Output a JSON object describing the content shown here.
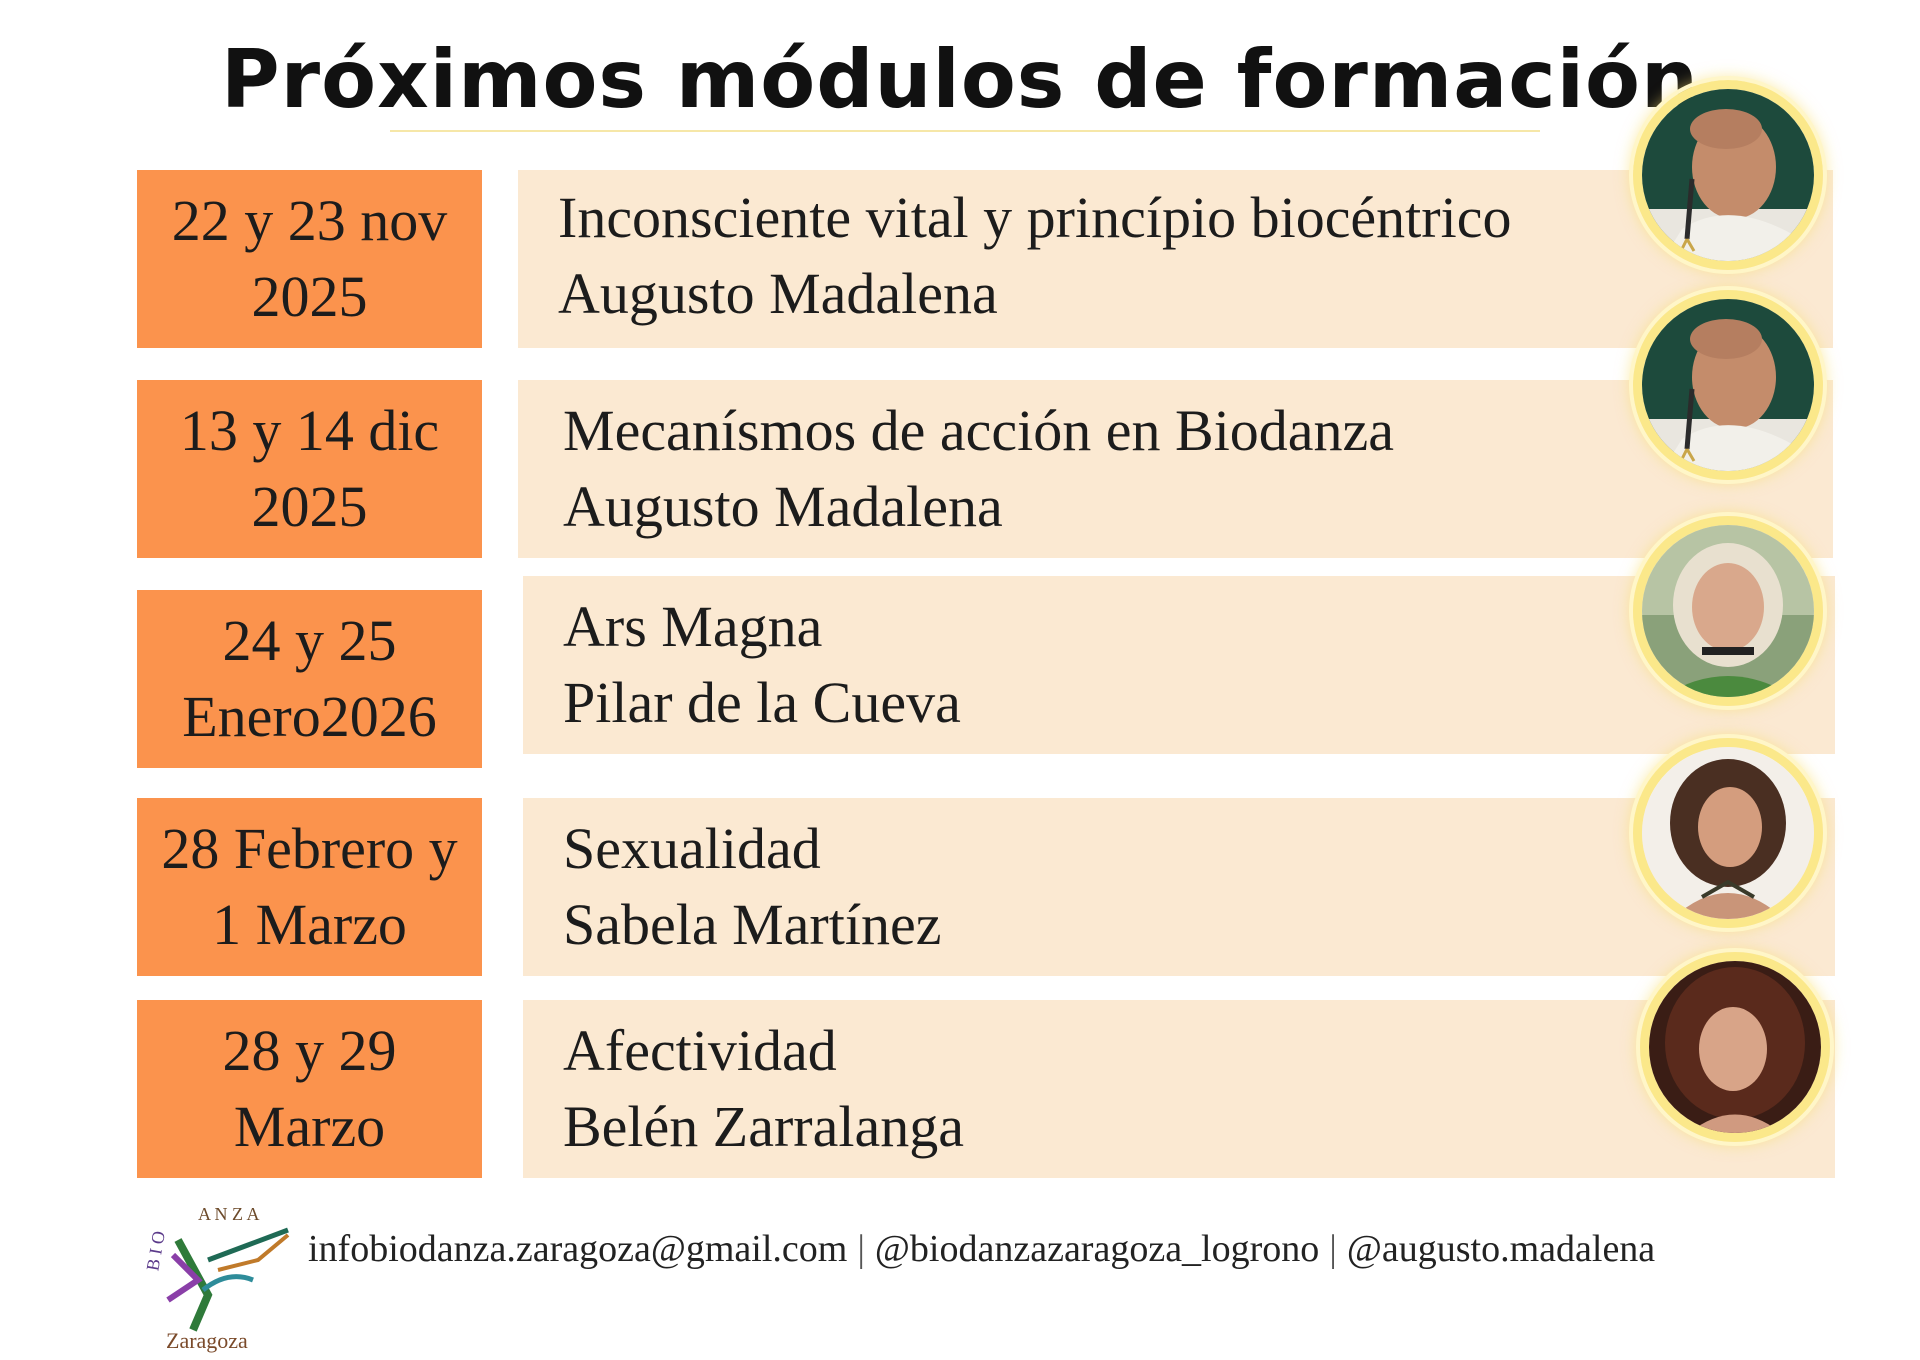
{
  "title": "Próximos módulos de formación",
  "modules": [
    {
      "date_line1": "22 y 23 nov",
      "date_line2": "2025",
      "topic": "Inconsciente vital y princípio biocéntrico",
      "teacher": "Augusto Madalena",
      "photo": "portrait-augusto-madalena"
    },
    {
      "date_line1": "13 y 14 dic",
      "date_line2": "2025",
      "topic": "Mecanísmos de acción en Biodanza",
      "teacher": "Augusto Madalena",
      "photo": "portrait-augusto-madalena"
    },
    {
      "date_line1": "24 y 25",
      "date_line2": "Enero2026",
      "topic": "Ars Magna",
      "teacher": "Pilar de la Cueva",
      "photo": "portrait-pilar-de-la-cueva"
    },
    {
      "date_line1": "28 Febrero y",
      "date_line2": "1 Marzo",
      "topic": "Sexualidad",
      "teacher": "Sabela Martínez",
      "photo": "portrait-sabela-martinez"
    },
    {
      "date_line1": "28 y 29",
      "date_line2": "Marzo",
      "topic": "Afectividad",
      "teacher": "Belén Zarralanga",
      "photo": "portrait-belen-zarralanga"
    }
  ],
  "footer": {
    "email": "infobiodanza.zaragoza@gmail.com",
    "separator": "|",
    "instagram_1": "@biodanzazaragoza_logrono",
    "instagram_2": "@augusto.madalena",
    "logo_text_top": "BIODANZA",
    "logo_text_bottom": "Zaragoza"
  },
  "colors": {
    "date_box": "#fb934d",
    "info_box": "#fbe9d2",
    "avatar_ring": "#fbe88a",
    "title_text": "#111111"
  }
}
